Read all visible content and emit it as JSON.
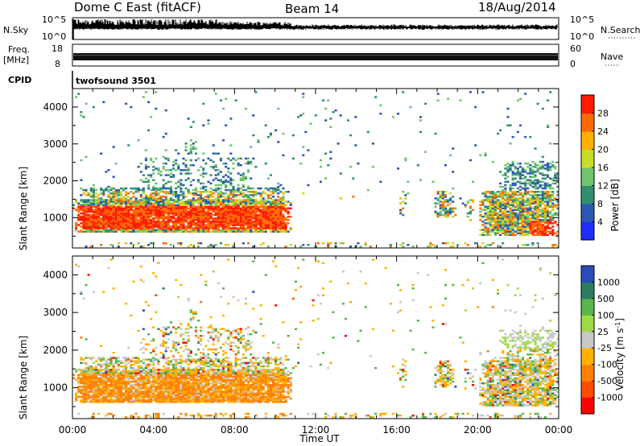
{
  "header": {
    "station": "Dome C East (fitACF)",
    "beam": "Beam 14",
    "date": "18/Aug/2014"
  },
  "strips": {
    "nsky_label": "N.Sky",
    "nsky_ticks": [
      "10^5",
      "10^0"
    ],
    "nsearch_label": "N.Search",
    "freq_label_1": "Freq.",
    "freq_label_2": "[MHz]",
    "freq_ticks": [
      "18",
      "8"
    ],
    "nave_ticks": [
      "60",
      "0"
    ],
    "nave_label": "Nave",
    "cpid_label": "CPID",
    "cpid_value": "twofsound 3501"
  },
  "chart_data": [
    {
      "type": "heatmap",
      "name": "power",
      "ylabel": "Slant Range [km]",
      "y_ticks": [
        1000,
        2000,
        3000,
        4000
      ],
      "ylim": [
        180,
        4500
      ],
      "colorbar_label": "Power [dB]",
      "colorbar_ticks": [
        "4",
        "8",
        "12",
        "16",
        "20",
        "24",
        "28"
      ],
      "colorbar_colors": [
        "#1f2dff",
        "#2c58b4",
        "#2f8f6e",
        "#6fc46c",
        "#c8dc2a",
        "#ffb000",
        "#ff6a00",
        "#ff1a00"
      ]
    },
    {
      "type": "heatmap",
      "name": "velocity",
      "ylabel": "Slant Range [km]",
      "y_ticks": [
        1000,
        2000,
        3000,
        4000
      ],
      "ylim": [
        180,
        4500
      ],
      "colorbar_label": "Velocity [m s^-1]",
      "colorbar_ticks": [
        "1000",
        "500",
        "100",
        "25",
        "-25",
        "-100",
        "-500",
        "-1000"
      ],
      "colorbar_colors": [
        "#2a4cb8",
        "#2e7b64",
        "#59b64c",
        "#9ddc45",
        "#c8c8c8",
        "#ffb000",
        "#ff8000",
        "#ff4c00",
        "#ff0000"
      ]
    }
  ],
  "time_axis": {
    "xlabel": "Time UT",
    "ticks": [
      "00:00",
      "04:00",
      "08:00",
      "12:00",
      "16:00",
      "20:00",
      "00:00"
    ]
  }
}
